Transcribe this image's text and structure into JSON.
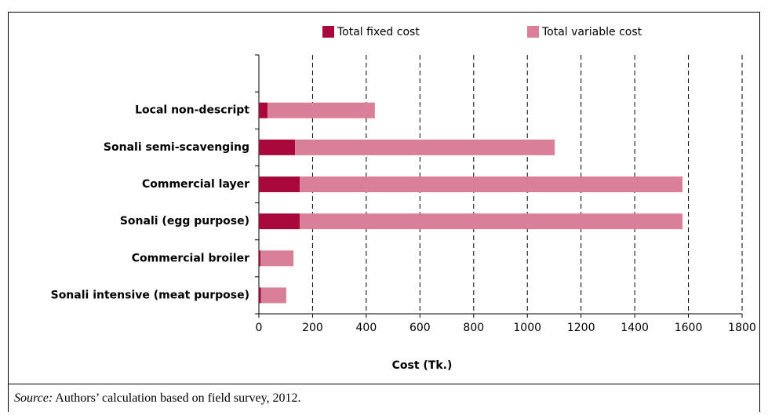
{
  "chart_data": {
    "type": "stacked_barh",
    "categories": [
      "Local non-descript",
      "Sonali semi-scavenging",
      "Commercial layer",
      "Sonali (egg purpose)",
      "Commercial broiler",
      "Sonali intensive (meat purpose)"
    ],
    "series": [
      {
        "name": "Total fixed cost",
        "color": "#a9083d",
        "values": [
          32,
          135,
          152,
          152,
          6,
          8
        ]
      },
      {
        "name": "Total variable cost",
        "color": "#d98098",
        "values": [
          400,
          967,
          1426,
          1426,
          123,
          94
        ]
      }
    ],
    "xlabel": "Cost (Tk.)",
    "xlim": [
      0,
      1800
    ],
    "xticks": [
      0,
      200,
      400,
      600,
      800,
      1000,
      1200,
      1400,
      1600,
      1800
    ],
    "grid": true,
    "legend": "top"
  },
  "source": {
    "label": "Source:",
    "text": "Authors’ calculation based on field survey, 2012."
  }
}
